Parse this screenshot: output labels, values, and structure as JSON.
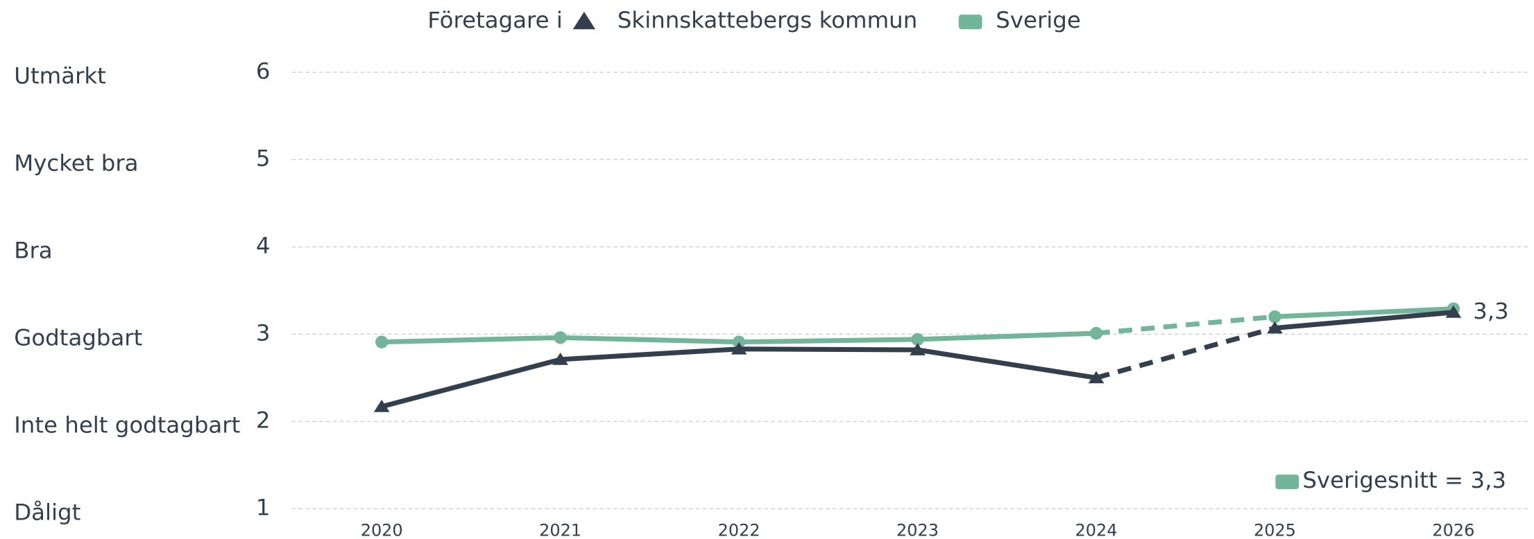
{
  "chart_data": {
    "type": "line",
    "legend_title": "Företagare i",
    "categories": [
      "2020",
      "2021",
      "2022",
      "2023",
      "2024",
      "2025",
      "2026"
    ],
    "series": [
      {
        "name": "Skinnskattebergs kommun",
        "color": "#333f4c",
        "marker": "triangle",
        "values": [
          2.17,
          2.71,
          2.83,
          2.82,
          2.5,
          3.07,
          3.25
        ],
        "value_labels": [
          null,
          null,
          null,
          null,
          null,
          null,
          "3,3"
        ]
      },
      {
        "name": "Sverige",
        "color": "#72b59a",
        "marker": "circle",
        "values": [
          2.91,
          2.96,
          2.91,
          2.94,
          3.01,
          3.2,
          3.29
        ]
      }
    ],
    "dashed_segments": [
      4
    ],
    "ylim": [
      1,
      6
    ],
    "yticks": [
      1,
      2,
      3,
      4,
      5,
      6
    ],
    "ytick_names": [
      "Dåligt",
      "Inte helt godtagbart",
      "Godtagbart",
      "Bra",
      "Mycket bra",
      "Utmärkt"
    ],
    "annotation": "Sverigesnitt = 3,3",
    "annotation_color": "#72b59a",
    "grid": true
  }
}
